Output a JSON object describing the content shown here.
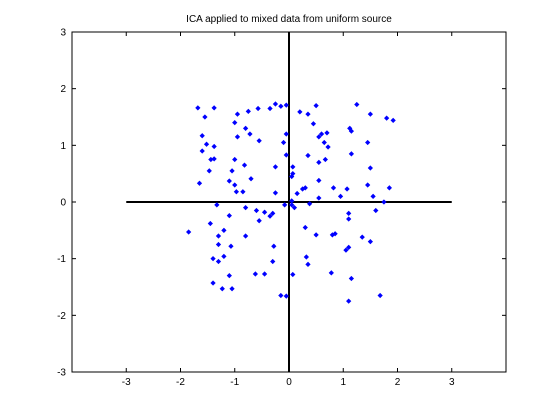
{
  "chart_data": {
    "type": "scatter",
    "title": "ICA applied to mixed data from uniform source",
    "xlabel": "",
    "ylabel": "",
    "xlim": [
      -4,
      4
    ],
    "ylim": [
      -3,
      3
    ],
    "xticks": [
      -3,
      -2,
      -1,
      0,
      1,
      2,
      3
    ],
    "yticks": [
      -3,
      -2,
      -1,
      0,
      1,
      2,
      3
    ],
    "grid": false,
    "marker_color": "#0000ff",
    "axis_line_color": "#000000",
    "reference_lines": [
      {
        "orientation": "horizontal",
        "value": 0,
        "from": -3,
        "to": 3
      },
      {
        "orientation": "vertical",
        "value": 0,
        "from": -3,
        "to": 3
      }
    ],
    "points": [
      {
        "x": -1.68,
        "y": 1.66
      },
      {
        "x": -1.55,
        "y": 1.5
      },
      {
        "x": -1.38,
        "y": 1.66
      },
      {
        "x": -1.6,
        "y": 1.17
      },
      {
        "x": -1.52,
        "y": 1.02
      },
      {
        "x": -1.38,
        "y": 0.98
      },
      {
        "x": -1.6,
        "y": 0.9
      },
      {
        "x": -1.44,
        "y": 0.75
      },
      {
        "x": -1.38,
        "y": 0.76
      },
      {
        "x": -1.47,
        "y": 0.55
      },
      {
        "x": -1.65,
        "y": 0.33
      },
      {
        "x": -1.85,
        "y": -0.53
      },
      {
        "x": -1.33,
        "y": -0.05
      },
      {
        "x": -1.45,
        "y": -0.38
      },
      {
        "x": -1.3,
        "y": -0.6
      },
      {
        "x": -1.3,
        "y": -0.75
      },
      {
        "x": -1.07,
        "y": -0.78
      },
      {
        "x": -1.4,
        "y": -1.0
      },
      {
        "x": -1.2,
        "y": -0.96
      },
      {
        "x": -1.3,
        "y": -1.05
      },
      {
        "x": -1.1,
        "y": -1.3
      },
      {
        "x": -1.4,
        "y": -1.43
      },
      {
        "x": -1.23,
        "y": -1.53
      },
      {
        "x": -1.05,
        "y": -1.53
      },
      {
        "x": -1.2,
        "y": -0.5
      },
      {
        "x": -1.1,
        "y": -0.24
      },
      {
        "x": -0.95,
        "y": 1.55
      },
      {
        "x": -0.75,
        "y": 1.6
      },
      {
        "x": -0.57,
        "y": 1.65
      },
      {
        "x": -0.35,
        "y": 1.65
      },
      {
        "x": -0.25,
        "y": 1.73
      },
      {
        "x": -0.15,
        "y": 1.69
      },
      {
        "x": -0.05,
        "y": 1.71
      },
      {
        "x": -1.0,
        "y": 1.4
      },
      {
        "x": -0.8,
        "y": 1.3
      },
      {
        "x": -0.72,
        "y": 1.2
      },
      {
        "x": -0.55,
        "y": 1.08
      },
      {
        "x": -0.95,
        "y": 1.15
      },
      {
        "x": -1.0,
        "y": 0.75
      },
      {
        "x": -0.82,
        "y": 0.65
      },
      {
        "x": -1.05,
        "y": 0.55
      },
      {
        "x": -1.1,
        "y": 0.37
      },
      {
        "x": -1.0,
        "y": 0.3
      },
      {
        "x": -0.97,
        "y": 0.18
      },
      {
        "x": -0.85,
        "y": 0.18
      },
      {
        "x": -0.7,
        "y": 0.41
      },
      {
        "x": -0.25,
        "y": 0.62
      },
      {
        "x": -0.25,
        "y": 0.16
      },
      {
        "x": -0.8,
        "y": -0.1
      },
      {
        "x": -0.6,
        "y": -0.15
      },
      {
        "x": -0.55,
        "y": -0.33
      },
      {
        "x": -0.45,
        "y": -0.18
      },
      {
        "x": -0.35,
        "y": -0.25
      },
      {
        "x": -0.3,
        "y": -0.2
      },
      {
        "x": -0.8,
        "y": -0.6
      },
      {
        "x": -0.62,
        "y": -1.27
      },
      {
        "x": -0.45,
        "y": -1.27
      },
      {
        "x": -0.3,
        "y": -1.05
      },
      {
        "x": -0.28,
        "y": -0.78
      },
      {
        "x": -0.15,
        "y": -1.65
      },
      {
        "x": -0.05,
        "y": -1.66
      },
      {
        "x": -0.05,
        "y": 1.2
      },
      {
        "x": -0.1,
        "y": 1.05
      },
      {
        "x": -0.05,
        "y": 0.83
      },
      {
        "x": -0.08,
        "y": -0.05
      },
      {
        "x": 0.05,
        "y": 0.02
      },
      {
        "x": 0.05,
        "y": -0.05
      },
      {
        "x": 0.05,
        "y": 0.45
      },
      {
        "x": 0.07,
        "y": 0.5
      },
      {
        "x": 0.07,
        "y": 0.62
      },
      {
        "x": 0.07,
        "y": -1.28
      },
      {
        "x": 0.1,
        "y": -0.1
      },
      {
        "x": 0.15,
        "y": 0.15
      },
      {
        "x": 0.2,
        "y": 1.59
      },
      {
        "x": 0.35,
        "y": 1.55
      },
      {
        "x": 0.5,
        "y": 1.7
      },
      {
        "x": 0.45,
        "y": 1.38
      },
      {
        "x": 0.55,
        "y": 1.15
      },
      {
        "x": 0.6,
        "y": 1.2
      },
      {
        "x": 0.7,
        "y": 1.22
      },
      {
        "x": 0.65,
        "y": 1.05
      },
      {
        "x": 0.72,
        "y": 0.97
      },
      {
        "x": 0.67,
        "y": 0.75
      },
      {
        "x": 0.55,
        "y": 0.7
      },
      {
        "x": 0.35,
        "y": 0.82
      },
      {
        "x": 0.55,
        "y": 0.38
      },
      {
        "x": 0.25,
        "y": 0.23
      },
      {
        "x": 0.3,
        "y": 0.25
      },
      {
        "x": 0.38,
        "y": -0.03
      },
      {
        "x": 0.55,
        "y": 0.07
      },
      {
        "x": 0.3,
        "y": -0.45
      },
      {
        "x": 0.5,
        "y": -0.58
      },
      {
        "x": 0.32,
        "y": -0.97
      },
      {
        "x": 0.35,
        "y": -1.1
      },
      {
        "x": 0.8,
        "y": -0.58
      },
      {
        "x": 0.85,
        "y": -0.56
      },
      {
        "x": 0.78,
        "y": -1.25
      },
      {
        "x": 0.82,
        "y": 0.25
      },
      {
        "x": 0.95,
        "y": 0.1
      },
      {
        "x": 1.07,
        "y": 0.23
      },
      {
        "x": 1.1,
        "y": -0.2
      },
      {
        "x": 1.1,
        "y": -0.3
      },
      {
        "x": 1.1,
        "y": -0.8
      },
      {
        "x": 1.05,
        "y": -0.85
      },
      {
        "x": 1.15,
        "y": -1.35
      },
      {
        "x": 1.1,
        "y": -1.75
      },
      {
        "x": 1.15,
        "y": 1.25
      },
      {
        "x": 1.12,
        "y": 1.3
      },
      {
        "x": 1.25,
        "y": 1.72
      },
      {
        "x": 1.5,
        "y": 1.55
      },
      {
        "x": 1.8,
        "y": 1.48
      },
      {
        "x": 1.92,
        "y": 1.44
      },
      {
        "x": 1.45,
        "y": 1.05
      },
      {
        "x": 1.15,
        "y": 0.85
      },
      {
        "x": 1.5,
        "y": 0.6
      },
      {
        "x": 1.45,
        "y": 0.3
      },
      {
        "x": 1.55,
        "y": 0.1
      },
      {
        "x": 1.85,
        "y": 0.25
      },
      {
        "x": 1.75,
        "y": 0.0
      },
      {
        "x": 1.6,
        "y": -0.15
      },
      {
        "x": 1.35,
        "y": -0.62
      },
      {
        "x": 1.5,
        "y": -0.7
      },
      {
        "x": 1.68,
        "y": -1.65
      }
    ]
  }
}
